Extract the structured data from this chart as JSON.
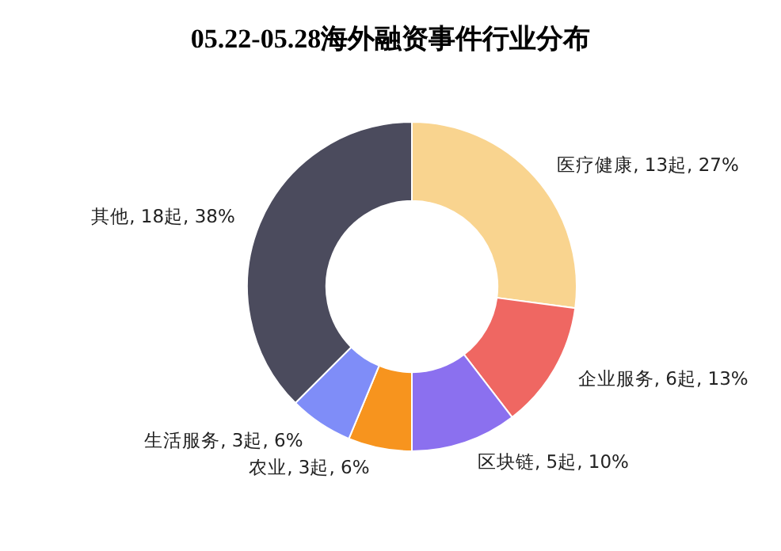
{
  "chart_data": {
    "type": "donut",
    "title": "05.22-05.28海外融资事件行业分布",
    "categories": [
      "医疗健康",
      "企业服务",
      "区块链",
      "农业",
      "生活服务",
      "其他"
    ],
    "values": [
      13,
      6,
      5,
      3,
      3,
      18
    ],
    "value_labels": [
      "13起, 27%",
      "6起, 13%",
      "5起, 10%",
      "3起, 6%",
      "3起, 6%",
      "18起, 38%"
    ],
    "colors": [
      "#f9d48f",
      "#ef6762",
      "#8b70ef",
      "#f7941e",
      "#7f8df8",
      "#4b4b5d"
    ]
  }
}
